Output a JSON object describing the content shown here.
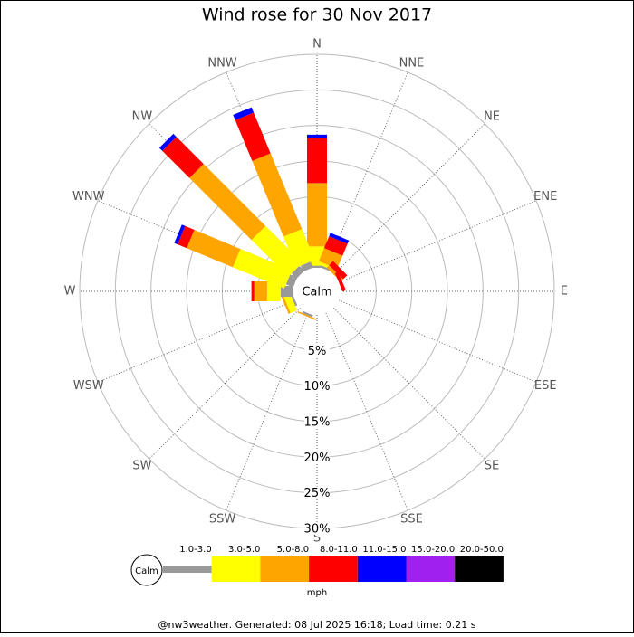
{
  "chart_data": {
    "type": "windrose",
    "title": "Wind rose for 30 Nov 2017",
    "categories": [
      "N",
      "NNE",
      "NE",
      "ENE",
      "E",
      "ESE",
      "SE",
      "SSE",
      "S",
      "SSW",
      "SW",
      "WSW",
      "W",
      "WNW",
      "NW",
      "NNW"
    ],
    "calm_label": "Calm",
    "rlim": [
      0,
      30
    ],
    "rticks": [
      {
        "value": 5,
        "label": "5%"
      },
      {
        "value": 10,
        "label": "10%"
      },
      {
        "value": 15,
        "label": "15%"
      },
      {
        "value": 20,
        "label": "20%"
      },
      {
        "value": 25,
        "label": "25%"
      },
      {
        "value": 30,
        "label": "30%"
      }
    ],
    "series": [
      {
        "name": "1.0-3.0",
        "color": "#999999",
        "values": [
          0.3,
          0.3,
          0,
          0,
          0,
          0,
          0,
          0,
          0,
          0.3,
          0,
          0.3,
          1.8,
          1.1,
          1.0,
          0.9
        ]
      },
      {
        "name": "3.0-5.0",
        "color": "#ffff00",
        "values": [
          2.7,
          0.4,
          0,
          0,
          0,
          0,
          0,
          0,
          0,
          0,
          0,
          1.0,
          1.9,
          7.8,
          7.3,
          4.7
        ]
      },
      {
        "name": "5.0-8.0",
        "color": "#ffa500",
        "values": [
          8.9,
          2.0,
          0.5,
          0,
          0,
          0,
          0,
          0,
          0,
          0.2,
          0,
          0.3,
          1.8,
          7.0,
          12.3,
          11.5
        ]
      },
      {
        "name": "8.0-11.0",
        "color": "#ff0000",
        "values": [
          6.3,
          1.8,
          0.8,
          0.5,
          0,
          0,
          0,
          0,
          0,
          0,
          0,
          0,
          0.4,
          1.4,
          5.4,
          6.2
        ]
      },
      {
        "name": "11.0-15.0",
        "color": "#0000ff",
        "values": [
          0.5,
          0.5,
          0,
          0,
          0,
          0,
          0,
          0,
          0,
          0,
          0,
          0,
          0,
          0.5,
          0.6,
          0.8
        ]
      },
      {
        "name": "15.0-20.0",
        "color": "#a020f0",
        "values": [
          0,
          0,
          0,
          0,
          0,
          0,
          0,
          0,
          0,
          0,
          0,
          0,
          0,
          0,
          0,
          0
        ]
      },
      {
        "name": "20.0-50.0",
        "color": "#000000",
        "values": [
          0,
          0,
          0,
          0,
          0,
          0,
          0,
          0,
          0,
          0,
          0,
          0,
          0,
          0,
          0,
          0
        ]
      }
    ],
    "legend_unit": "mph",
    "footer": "@nw3weather.  Generated: 08 Jul 2025 16:18; Load time: 0.21 s"
  }
}
